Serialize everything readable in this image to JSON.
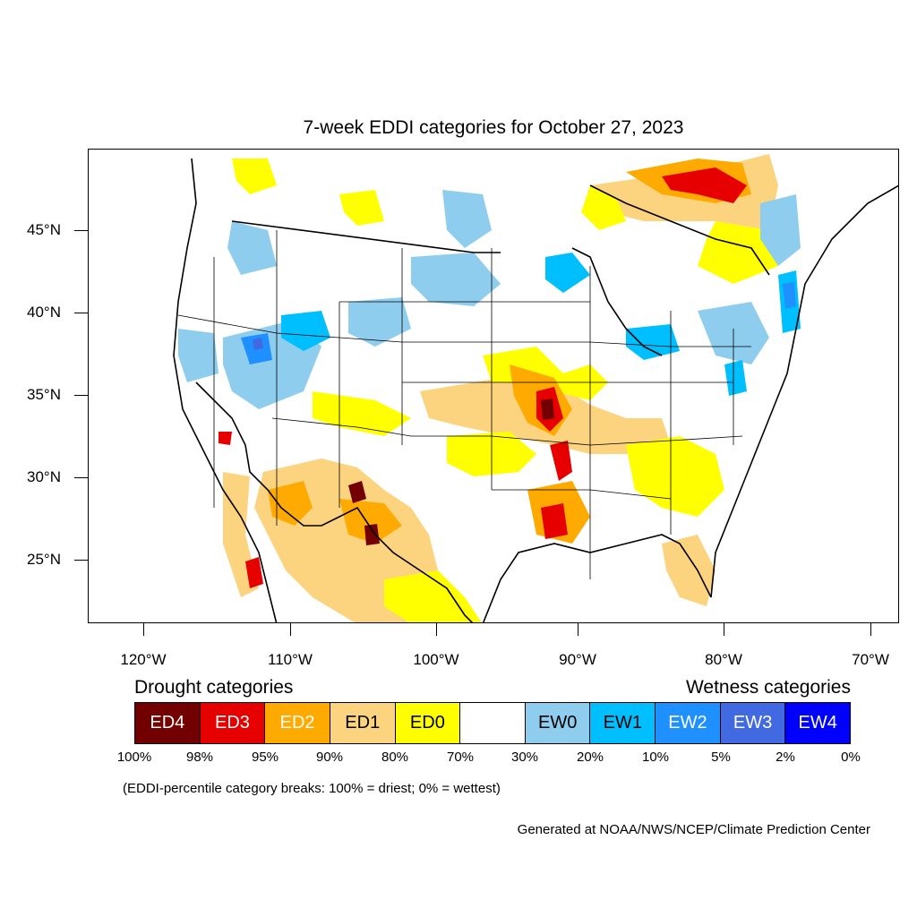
{
  "title": "7-week EDDI categories for October 27, 2023",
  "lat_labels": [
    "45°N",
    "40°N",
    "35°N",
    "30°N",
    "25°N"
  ],
  "lon_labels": [
    "120°W",
    "110°W",
    "100°W",
    "90°W",
    "80°W",
    "70°W"
  ],
  "legend": {
    "drought_heading": "Drought categories",
    "wetness_heading": "Wetness categories",
    "boxes": [
      {
        "label": "ED4",
        "color": "#730000",
        "text_color": "#ffffff"
      },
      {
        "label": "ED3",
        "color": "#e60000",
        "text_color": "#ffffff"
      },
      {
        "label": "ED2",
        "color": "#ffaa00",
        "text_color": "#ffffff"
      },
      {
        "label": "ED1",
        "color": "#fcd37f",
        "text_color": "#000000"
      },
      {
        "label": "ED0",
        "color": "#ffff00",
        "text_color": "#000000"
      },
      {
        "label": "",
        "color": "#ffffff",
        "text_color": "#000000"
      },
      {
        "label": "EW0",
        "color": "#8ecdee",
        "text_color": "#000000"
      },
      {
        "label": "EW1",
        "color": "#00bfff",
        "text_color": "#000000"
      },
      {
        "label": "EW2",
        "color": "#1e90ff",
        "text_color": "#ffffff"
      },
      {
        "label": "EW3",
        "color": "#4169e1",
        "text_color": "#ffffff"
      },
      {
        "label": "EW4",
        "color": "#0000ff",
        "text_color": "#ffffff"
      }
    ],
    "percentiles": [
      "100%",
      "98%",
      "95%",
      "90%",
      "80%",
      "70%",
      "30%",
      "20%",
      "10%",
      "5%",
      "2%",
      "0%"
    ]
  },
  "note": "(EDDI-percentile category breaks: 100% = driest; 0% = wettest)",
  "credit": "Generated at NOAA/NWS/NCEP/Climate Prediction Center"
}
